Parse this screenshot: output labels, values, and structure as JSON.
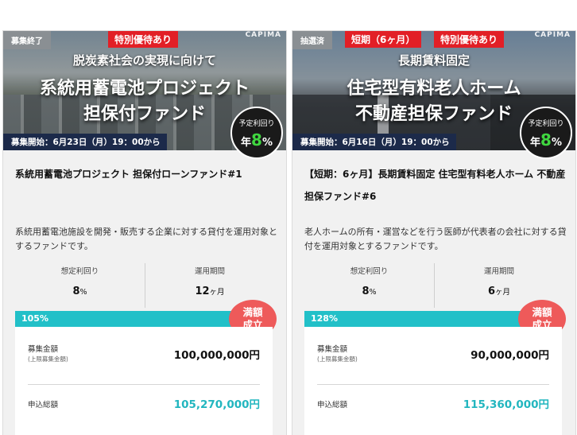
{
  "cards": [
    {
      "status": "募集終了",
      "promos": [
        "特別優待あり"
      ],
      "brand": "CAPIMA",
      "banner_line1": "脱炭素社会の実現に向けて",
      "banner_line2": "系統用蓄電池プロジェクト",
      "banner_line3": "担保付ファンド",
      "yield_badge_label": "予定利回り",
      "yield_badge_prefix": "年",
      "yield_badge_value": "8",
      "yield_badge_unit": "%",
      "start_text": "募集開始：6月23日（月）19：00から",
      "title": "系統用蓄電池プロジェクト 担保付ローンファンド#1",
      "description": "系統用蓄電池施設を開発・販売する企業に対する貸付を運用対象とするファンドです。",
      "metric_yield_label": "想定利回り",
      "metric_yield_value": "8",
      "metric_yield_unit": "%",
      "metric_term_label": "運用期間",
      "metric_term_value": "12",
      "metric_term_unit": "ヶ月",
      "progress_label": "105%",
      "progress_fraction": 1.0,
      "full_badge_line1": "満額",
      "full_badge_line2": "成立",
      "amount_label": "募集金額",
      "amount_sub": "(上限募集金額)",
      "amount_value": "100,000,000円",
      "total_label": "申込総額",
      "total_value": "105,270,000円"
    },
    {
      "status": "抽選済",
      "promos": [
        "短期（6ヶ月）",
        "特別優待あり"
      ],
      "brand": "CAPIMA",
      "banner_line1": "長期賃料固定",
      "banner_line2": "住宅型有料老人ホーム",
      "banner_line3": "不動産担保ファンド",
      "yield_badge_label": "予定利回り",
      "yield_badge_prefix": "年",
      "yield_badge_value": "8",
      "yield_badge_unit": "%",
      "start_text": "募集開始：6月16日（月）19：00から",
      "title": "【短期：6ヶ月】長期賃料固定 住宅型有料老人ホーム 不動産担保ファンド#6",
      "description": "老人ホームの所有・運営などを行う医師が代表者の会社に対する貸付を運用対象とするファンドです。",
      "metric_yield_label": "想定利回り",
      "metric_yield_value": "8",
      "metric_yield_unit": "%",
      "metric_term_label": "運用期間",
      "metric_term_value": "6",
      "metric_term_unit": "ヶ月",
      "progress_label": "128%",
      "progress_fraction": 1.0,
      "full_badge_line1": "満額",
      "full_badge_line2": "成立",
      "amount_label": "募集金額",
      "amount_sub": "(上限募集金額)",
      "amount_value": "90,000,000円",
      "total_label": "申込総額",
      "total_value": "115,360,000円"
    }
  ],
  "colors": {
    "accent_teal": "#22c0c8",
    "promo_red": "#e21f26",
    "badge_coral": "#ee5a5a",
    "start_navy": "#1c2a4a",
    "yield_green": "#3fd63f"
  }
}
